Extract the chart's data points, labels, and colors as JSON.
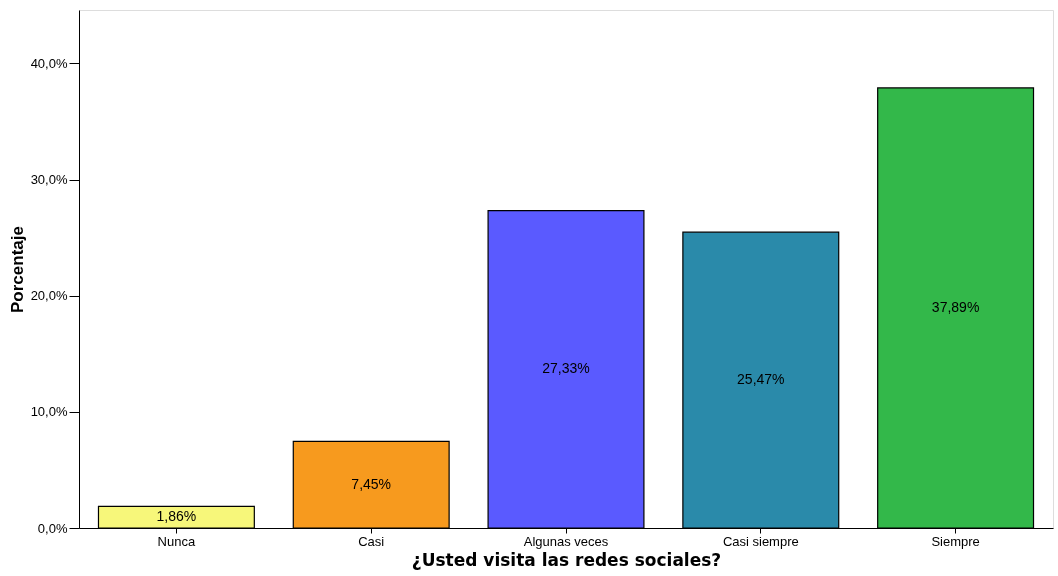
{
  "chart_data": {
    "type": "bar",
    "xlabel": "¿Usted visita las redes sociales?",
    "ylabel": "Porcentaje",
    "categories": [
      "Nunca",
      "Casi",
      "Algunas veces",
      "Casi siempre",
      "Siempre"
    ],
    "values": [
      1.86,
      7.45,
      27.33,
      25.47,
      37.89
    ],
    "colors": [
      "#f7f77a",
      "#f79a1e",
      "#5a5aff",
      "#2a8aaa",
      "#33b84a"
    ],
    "value_labels": [
      "1,86%",
      "7,45%",
      "27,33%",
      "25,47%",
      "37,89%"
    ],
    "ylim": [
      0,
      44.6
    ],
    "yticks": [
      {
        "value": 0,
        "label": "0,0%"
      },
      {
        "value": 10,
        "label": "10,0%"
      },
      {
        "value": 20,
        "label": "20,0%"
      },
      {
        "value": 30,
        "label": "30,0%"
      },
      {
        "value": 40,
        "label": "40,0%"
      }
    ],
    "grid": false
  }
}
